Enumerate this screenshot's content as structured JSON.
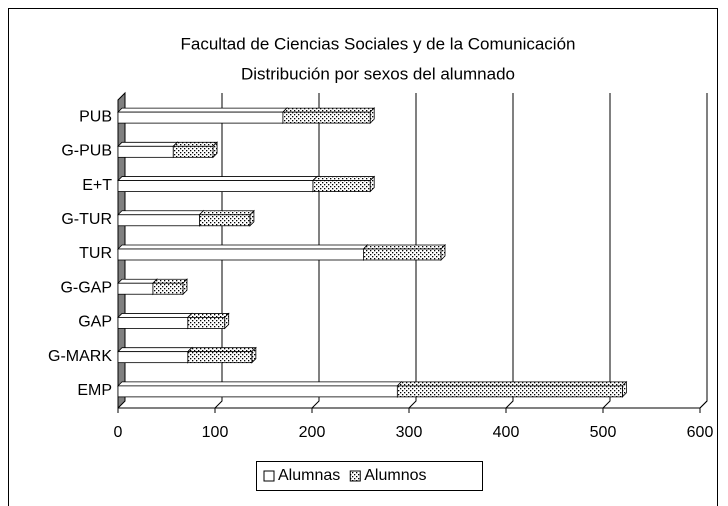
{
  "chart_data": {
    "type": "stacked_barh",
    "title": "Facultad de Ciencias Sociales y de la Comunicación",
    "subtitle": "Distribución por sexos del alumnado",
    "categories": [
      "EMP",
      "G-MARK",
      "GAP",
      "G-GAP",
      "TUR",
      "G-TUR",
      "E+T",
      "G-PUB",
      "PUB"
    ],
    "series": [
      {
        "name": "Alumnas",
        "color": "#ffffff",
        "pattern": "none",
        "values": [
          288,
          72,
          72,
          36,
          253,
          84,
          201,
          57,
          170
        ]
      },
      {
        "name": "Alumnos",
        "color": "#ffffff",
        "pattern": "dots",
        "values": [
          232,
          66,
          38,
          31,
          80,
          52,
          59,
          41,
          90
        ]
      }
    ],
    "xlim": [
      0,
      600
    ],
    "xticks": [
      0,
      100,
      200,
      300,
      400,
      500,
      600
    ],
    "grid": true,
    "legend": "bottom"
  }
}
